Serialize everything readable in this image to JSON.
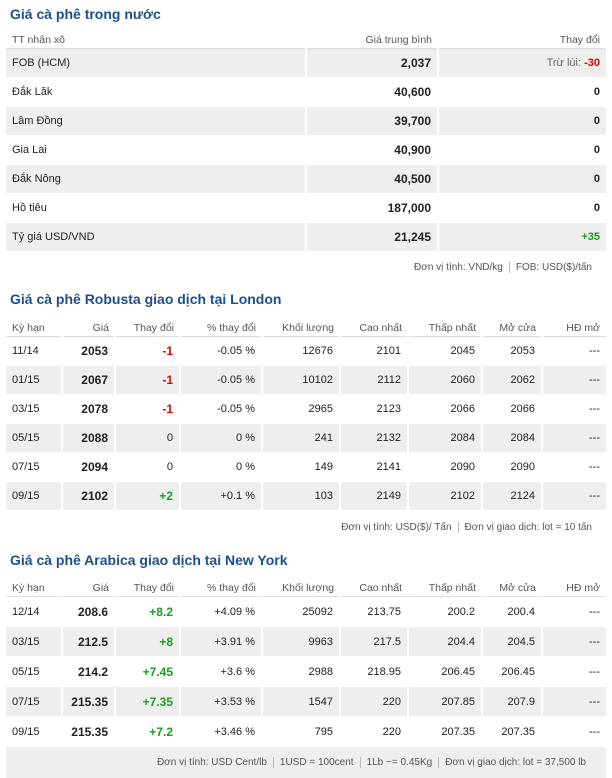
{
  "domestic": {
    "title": "Giá cà phê trong nước",
    "headers": [
      "TT nhân xô",
      "Giá trung bình",
      "Thay đổi"
    ],
    "rows": [
      {
        "name": "FOB (HCM)",
        "price": "2,037",
        "change_label": "Trừ lùi:",
        "change": "-30"
      },
      {
        "name": "Đắk Lăk",
        "price": "40,600",
        "change": "0"
      },
      {
        "name": "Lâm Đồng",
        "price": "39,700",
        "change": "0"
      },
      {
        "name": "Gia Lai",
        "price": "40,900",
        "change": "0"
      },
      {
        "name": "Đắk Nông",
        "price": "40,500",
        "change": "0"
      },
      {
        "name": "Hồ tiêu",
        "price": "187,000",
        "change": "0"
      },
      {
        "name": "Tỷ giá USD/VND",
        "price": "21,245",
        "change": "+35"
      }
    ],
    "footnotes": [
      "Đơn vị tính: VND/kg",
      "FOB: USD($)/tấn"
    ]
  },
  "robusta": {
    "title": "Giá cà phê Robusta giao dịch tại London",
    "headers": [
      "Kỳ hạn",
      "Giá",
      "Thay đổi",
      "% thay đổi",
      "Khối lượng",
      "Cao nhất",
      "Thấp nhất",
      "Mở cửa",
      "HĐ mở"
    ],
    "rows": [
      [
        "11/14",
        "2053",
        "-1",
        "-0.05 %",
        "12676",
        "2101",
        "2045",
        "2053",
        "---"
      ],
      [
        "01/15",
        "2067",
        "-1",
        "-0.05 %",
        "10102",
        "2112",
        "2060",
        "2062",
        "---"
      ],
      [
        "03/15",
        "2078",
        "-1",
        "-0.05 %",
        "2965",
        "2123",
        "2066",
        "2066",
        "---"
      ],
      [
        "05/15",
        "2088",
        "0",
        "0 %",
        "241",
        "2132",
        "2084",
        "2084",
        "---"
      ],
      [
        "07/15",
        "2094",
        "0",
        "0 %",
        "149",
        "2141",
        "2090",
        "2090",
        "---"
      ],
      [
        "09/15",
        "2102",
        "+2",
        "+0.1 %",
        "103",
        "2149",
        "2102",
        "2124",
        "---"
      ]
    ],
    "footnotes": [
      "Đơn vị tính: USD($)/ Tấn",
      "Đơn vị giao dịch: lot = 10 tấn"
    ]
  },
  "arabica": {
    "title": "Giá cà phê Arabica giao dịch tại New York",
    "headers": [
      "Kỳ hạn",
      "Giá",
      "Thay đổi",
      "% thay đổi",
      "Khối lượng",
      "Cao nhất",
      "Thấp nhất",
      "Mở cửa",
      "HĐ mở"
    ],
    "rows": [
      [
        "12/14",
        "208.6",
        "+8.2",
        "+4.09 %",
        "25092",
        "213.75",
        "200.2",
        "200.4",
        "---"
      ],
      [
        "03/15",
        "212.5",
        "+8",
        "+3.91 %",
        "9963",
        "217.5",
        "204.4",
        "204.5",
        "---"
      ],
      [
        "05/15",
        "214.2",
        "+7.45",
        "+3.6 %",
        "2988",
        "218.95",
        "206.45",
        "206.45",
        "---"
      ],
      [
        "07/15",
        "215.35",
        "+7.35",
        "+3.53 %",
        "1547",
        "220",
        "207.85",
        "207.9",
        "---"
      ],
      [
        "09/15",
        "215.35",
        "+7.2",
        "+3.46 %",
        "795",
        "220",
        "207.35",
        "207.35",
        "---"
      ]
    ],
    "footnotes": [
      "Đơn vị tính: USD Cent/lb",
      "1USD = 100cent",
      "1Lb ~= 0.45Kg",
      "Đơn vị giao dịch: lot = 37,500 lb"
    ]
  }
}
